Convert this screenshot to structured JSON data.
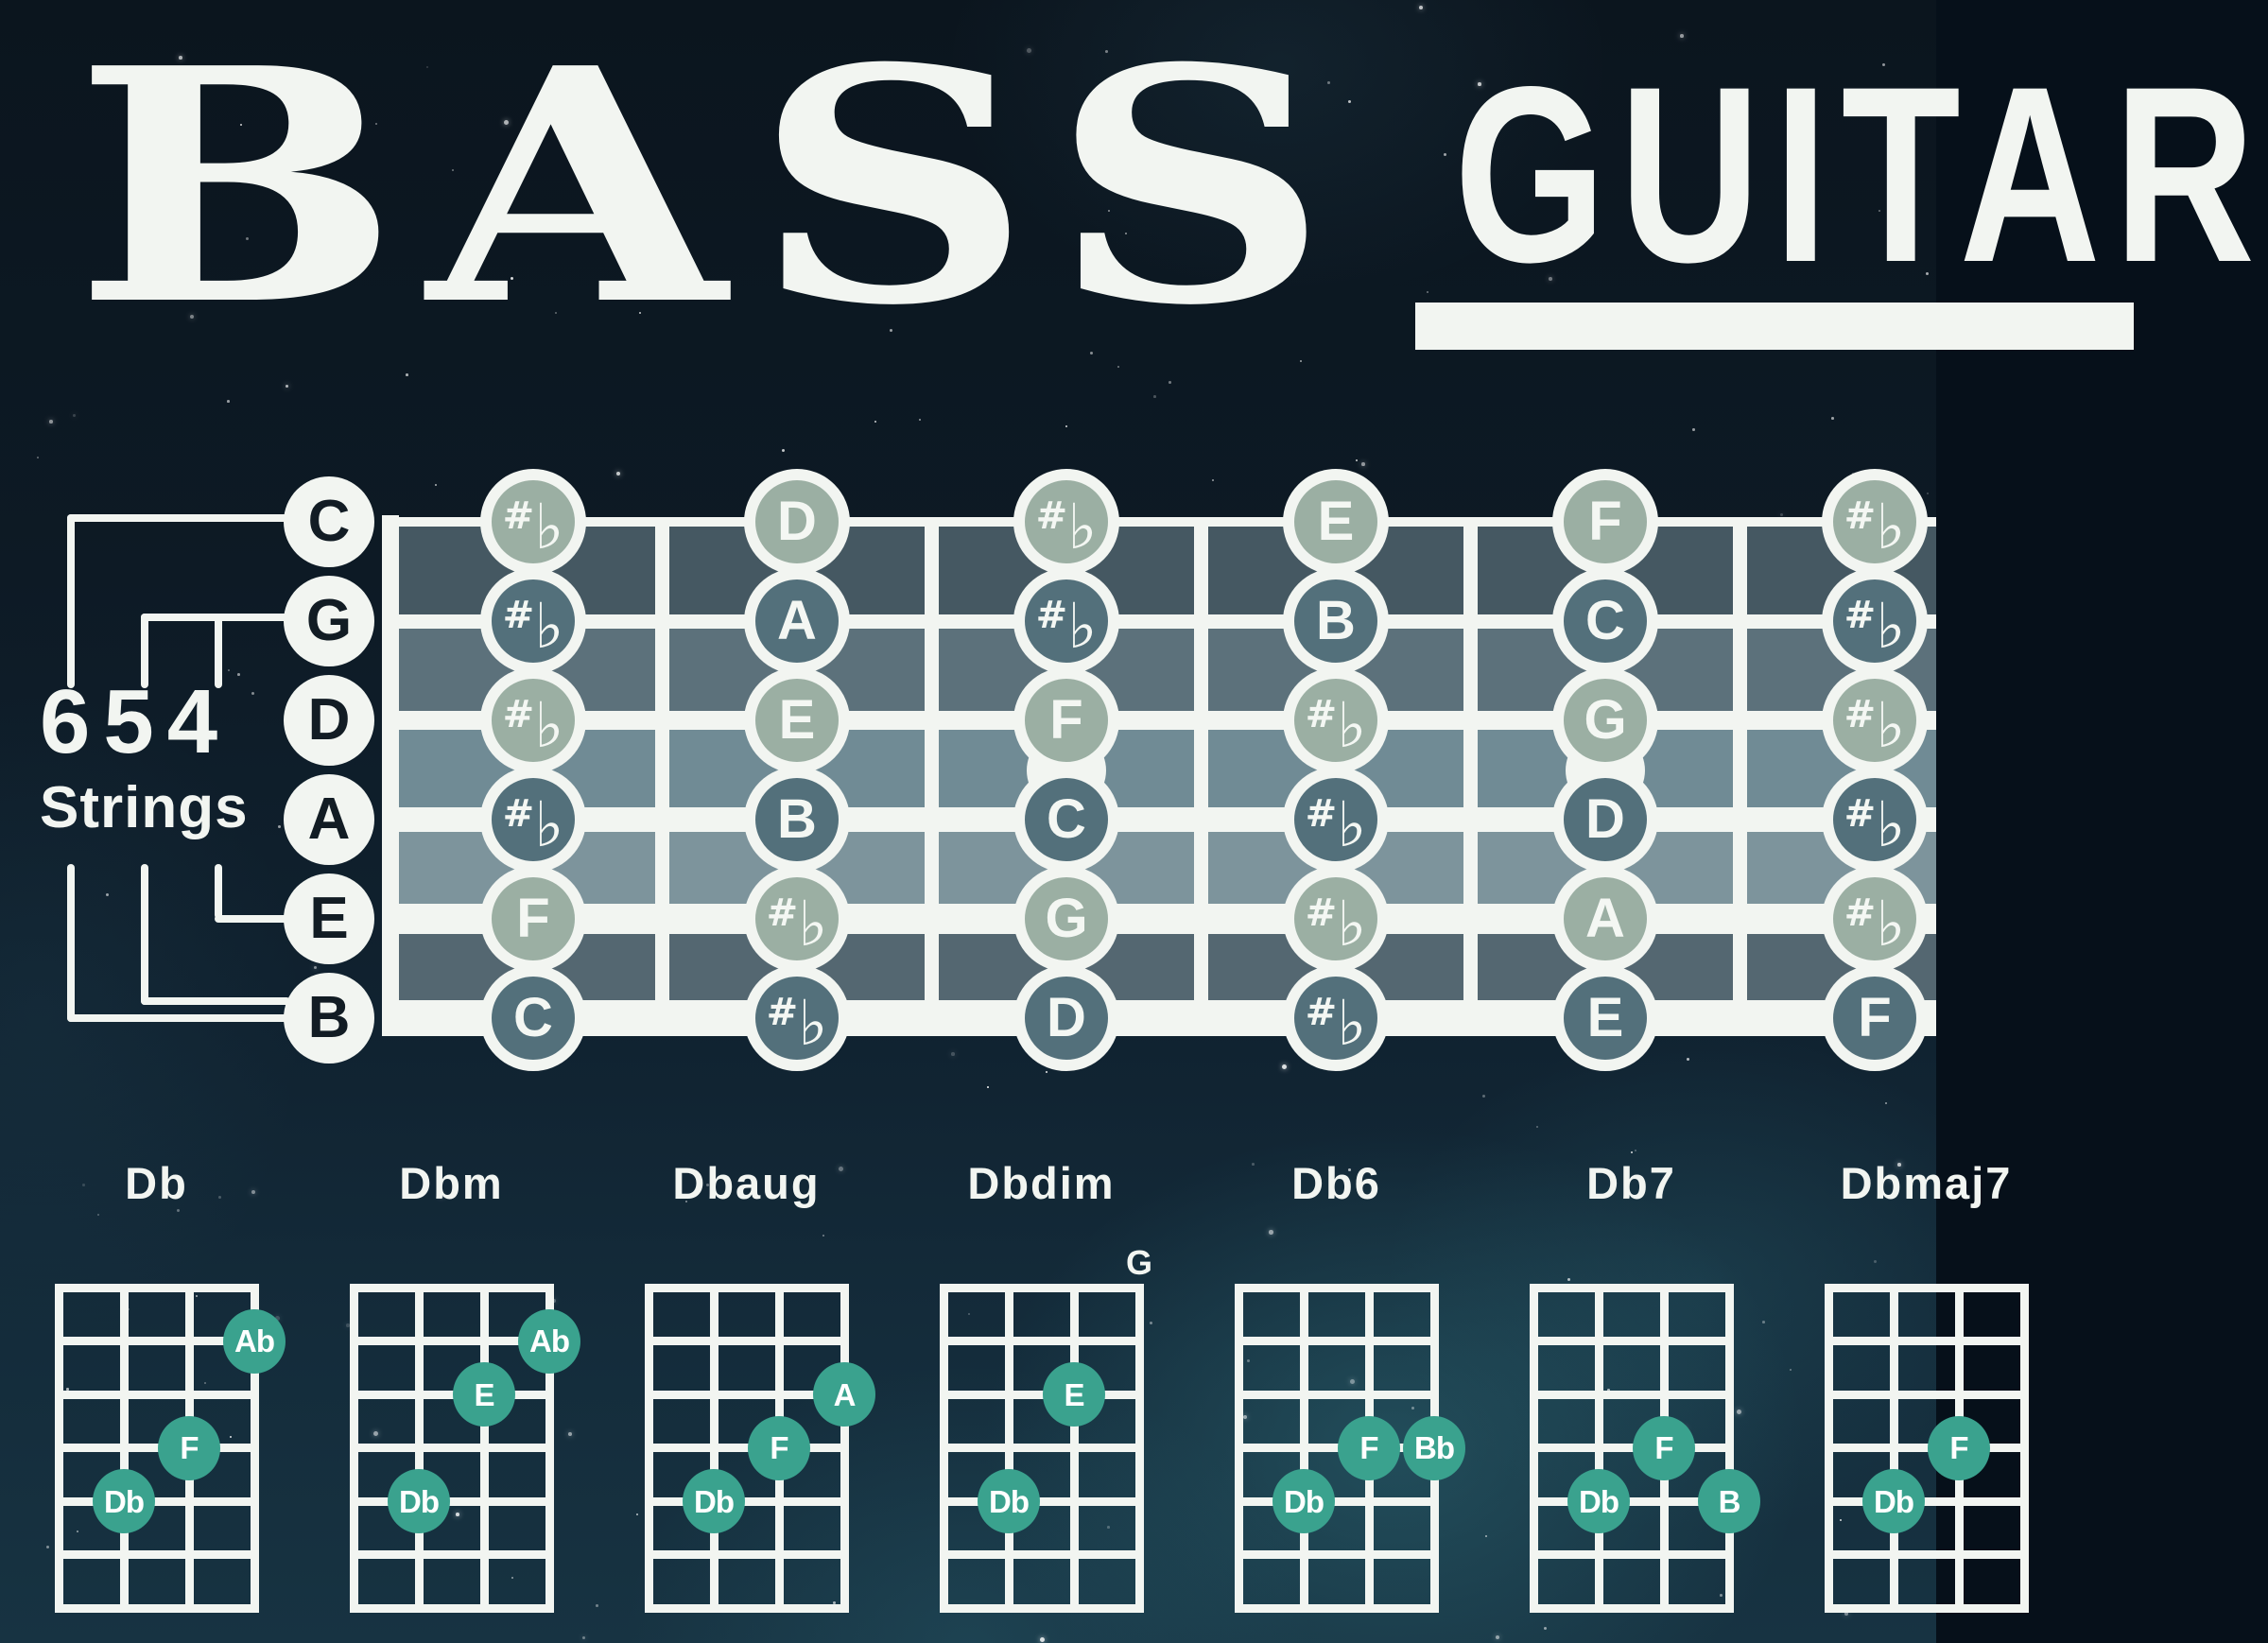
{
  "poster": {
    "title_main": "BASS",
    "title_secondary": "GUITAR",
    "tuning_legend": {
      "numbers": "654",
      "word": "Strings",
      "bracket_sizes": [
        6,
        5,
        4
      ]
    },
    "string_names": [
      "C",
      "G",
      "D",
      "A",
      "E",
      "B"
    ],
    "fretboard": {
      "rows": [
        {
          "string": "C",
          "notes": [
            "#♭",
            "D",
            "#♭",
            "E",
            "F",
            "#♭"
          ]
        },
        {
          "string": "G",
          "notes": [
            "#♭",
            "A",
            "#♭",
            "B",
            "C",
            "#♭"
          ]
        },
        {
          "string": "D",
          "notes": [
            "#♭",
            "E",
            "F",
            "#♭",
            "G",
            "#♭"
          ]
        },
        {
          "string": "A",
          "notes": [
            "#♭",
            "B",
            "C",
            "#♭",
            "D",
            "#♭"
          ]
        },
        {
          "string": "E",
          "notes": [
            "F",
            "#♭",
            "G",
            "#♭",
            "A",
            "#♭"
          ]
        },
        {
          "string": "B",
          "notes": [
            "C",
            "#♭",
            "D",
            "#♭",
            "E",
            "F"
          ]
        }
      ],
      "marker_frets": [
        3,
        5
      ]
    },
    "chords": [
      {
        "label": "Db",
        "open_note": "",
        "dots": [
          {
            "note": "Ab",
            "string": 4,
            "fret": 1
          },
          {
            "note": "F",
            "string": 3,
            "fret": 3
          },
          {
            "note": "Db",
            "string": 2,
            "fret": 4
          }
        ]
      },
      {
        "label": "Dbm",
        "open_note": "",
        "dots": [
          {
            "note": "Ab",
            "string": 4,
            "fret": 1
          },
          {
            "note": "E",
            "string": 3,
            "fret": 2
          },
          {
            "note": "Db",
            "string": 2,
            "fret": 4
          }
        ]
      },
      {
        "label": "Dbaug",
        "open_note": "",
        "dots": [
          {
            "note": "A",
            "string": 4,
            "fret": 2
          },
          {
            "note": "F",
            "string": 3,
            "fret": 3
          },
          {
            "note": "Db",
            "string": 2,
            "fret": 4
          }
        ]
      },
      {
        "label": "Dbdim",
        "open_note": "G",
        "dots": [
          {
            "note": "E",
            "string": 3,
            "fret": 2
          },
          {
            "note": "Db",
            "string": 2,
            "fret": 4
          }
        ]
      },
      {
        "label": "Db6",
        "open_note": "",
        "dots": [
          {
            "note": "F",
            "string": 3,
            "fret": 3
          },
          {
            "note": "Bb",
            "string": 4,
            "fret": 3
          },
          {
            "note": "Db",
            "string": 2,
            "fret": 4
          }
        ]
      },
      {
        "label": "Db7",
        "open_note": "",
        "dots": [
          {
            "note": "F",
            "string": 3,
            "fret": 3
          },
          {
            "note": "B",
            "string": 4,
            "fret": 4
          },
          {
            "note": "Db",
            "string": 2,
            "fret": 4
          }
        ]
      },
      {
        "label": "Dbmaj7",
        "open_note": "",
        "dots": [
          {
            "note": "Db",
            "string": 2,
            "fret": 4
          },
          {
            "note": "F",
            "string": 3,
            "fret": 3
          }
        ]
      }
    ],
    "colors": {
      "background_top": "#0b151e",
      "background_bottom": "#173342",
      "ink_white": "#f2f5f1",
      "text_black": "#121c24",
      "note_circle_light": "#9bafa3",
      "note_circle_dark": "#53707b",
      "fret_bands": [
        "#455862",
        "#5c717b",
        "#708b95",
        "#7d949c",
        "#546771"
      ],
      "chord_dot_teal": "#3aa28e"
    }
  }
}
